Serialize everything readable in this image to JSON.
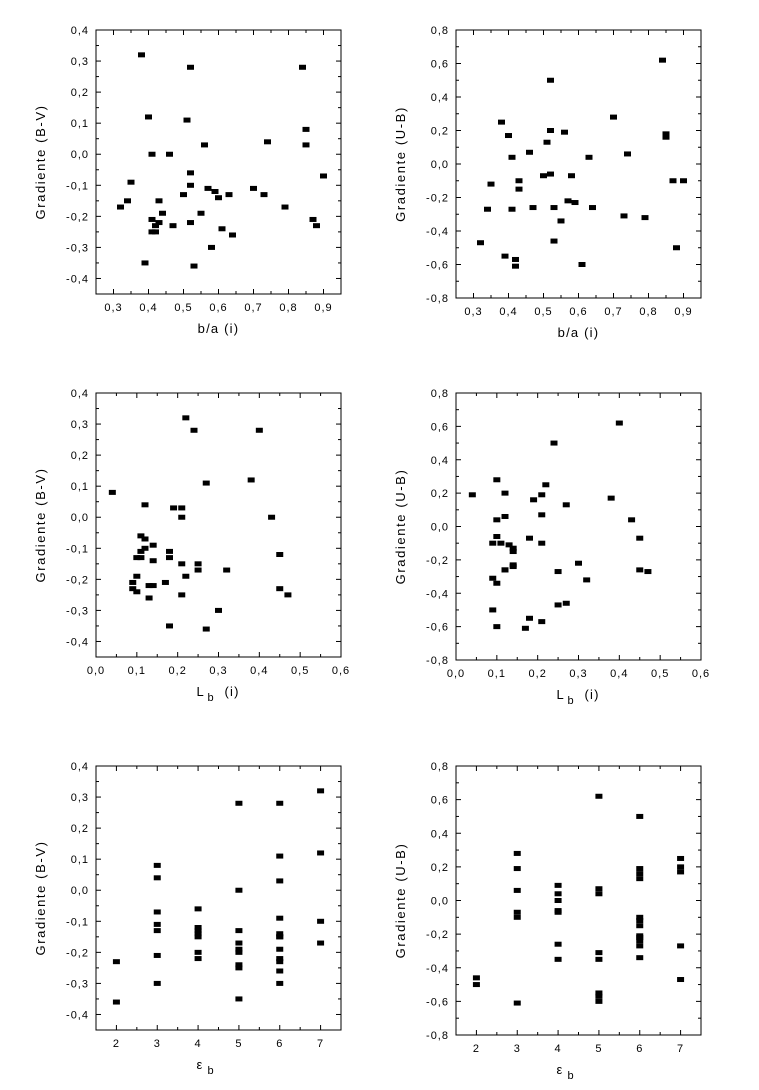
{
  "chart_data": [
    {
      "type": "scatter",
      "xlabel": "b/a  (i)",
      "ylabel": "Gradiente  (B-V)",
      "xlim": [
        0.25,
        0.95
      ],
      "ylim": [
        -0.45,
        0.4
      ],
      "xticks": [
        0.3,
        0.4,
        0.5,
        0.6,
        0.7,
        0.8,
        0.9
      ],
      "xtick_labels": [
        "0,3",
        "0,4",
        "0,5",
        "0,6",
        "0,7",
        "0,8",
        "0,9"
      ],
      "yticks": [
        -0.4,
        -0.3,
        -0.2,
        -0.1,
        0.0,
        0.1,
        0.2,
        0.3,
        0.4
      ],
      "ytick_labels": [
        "-0,4",
        "-0,3",
        "-0,2",
        "-0,1",
        "0,0",
        "0,1",
        "0,2",
        "0,3",
        "0,4"
      ],
      "x": [
        0.32,
        0.34,
        0.35,
        0.38,
        0.39,
        0.4,
        0.41,
        0.41,
        0.41,
        0.42,
        0.42,
        0.43,
        0.43,
        0.44,
        0.46,
        0.47,
        0.5,
        0.51,
        0.52,
        0.52,
        0.52,
        0.52,
        0.53,
        0.55,
        0.56,
        0.57,
        0.58,
        0.59,
        0.6,
        0.61,
        0.63,
        0.64,
        0.7,
        0.73,
        0.74,
        0.79,
        0.84,
        0.85,
        0.85,
        0.87,
        0.88,
        0.9
      ],
      "y": [
        -0.17,
        -0.15,
        -0.09,
        0.32,
        -0.35,
        0.12,
        0.0,
        -0.21,
        -0.25,
        -0.25,
        -0.23,
        -0.15,
        -0.22,
        -0.19,
        0.0,
        -0.23,
        -0.13,
        0.11,
        0.28,
        -0.06,
        -0.1,
        -0.22,
        -0.36,
        -0.19,
        0.03,
        -0.11,
        -0.3,
        -0.12,
        -0.14,
        -0.24,
        -0.13,
        -0.26,
        -0.11,
        -0.13,
        0.04,
        -0.17,
        0.28,
        0.08,
        0.03,
        -0.21,
        -0.23,
        -0.07
      ]
    },
    {
      "type": "scatter",
      "xlabel": "b/a  (i)",
      "ylabel": "Gradiente  (U-B)",
      "xlim": [
        0.25,
        0.95
      ],
      "ylim": [
        -0.8,
        0.8
      ],
      "xticks": [
        0.3,
        0.4,
        0.5,
        0.6,
        0.7,
        0.8,
        0.9
      ],
      "xtick_labels": [
        "0,3",
        "0,4",
        "0,5",
        "0,6",
        "0,7",
        "0,8",
        "0,9"
      ],
      "yticks": [
        -0.8,
        -0.6,
        -0.4,
        -0.2,
        0.0,
        0.2,
        0.4,
        0.6,
        0.8
      ],
      "ytick_labels": [
        "-0,8",
        "-0,6",
        "-0,4",
        "-0,2",
        "0,0",
        "0,2",
        "0,4",
        "0,6",
        "0,8"
      ],
      "x": [
        0.32,
        0.34,
        0.35,
        0.38,
        0.39,
        0.4,
        0.41,
        0.41,
        0.42,
        0.42,
        0.43,
        0.43,
        0.46,
        0.47,
        0.5,
        0.51,
        0.52,
        0.52,
        0.52,
        0.53,
        0.53,
        0.55,
        0.56,
        0.57,
        0.58,
        0.59,
        0.61,
        0.63,
        0.64,
        0.7,
        0.73,
        0.74,
        0.79,
        0.84,
        0.85,
        0.85,
        0.87,
        0.88,
        0.9
      ],
      "y": [
        -0.47,
        -0.27,
        -0.12,
        0.25,
        -0.55,
        0.17,
        0.04,
        -0.27,
        -0.61,
        -0.57,
        -0.1,
        -0.15,
        0.07,
        -0.26,
        -0.07,
        0.13,
        0.5,
        0.2,
        -0.06,
        -0.26,
        -0.46,
        -0.34,
        0.19,
        -0.22,
        -0.07,
        -0.23,
        -0.6,
        0.04,
        -0.26,
        0.28,
        -0.31,
        0.06,
        -0.32,
        0.62,
        0.18,
        0.16,
        -0.1,
        -0.5,
        -0.1
      ]
    },
    {
      "type": "scatter",
      "xlabel": "L",
      "xlabel_sub": "b",
      "xlabel_suffix": "(i)",
      "ylabel": "Gradiente  (B-V)",
      "xlim": [
        0.0,
        0.6
      ],
      "ylim": [
        -0.45,
        0.4
      ],
      "xticks": [
        0.0,
        0.1,
        0.2,
        0.3,
        0.4,
        0.5,
        0.6
      ],
      "xtick_labels": [
        "0,0",
        "0,1",
        "0,2",
        "0,3",
        "0,4",
        "0,5",
        "0,6"
      ],
      "yticks": [
        -0.4,
        -0.3,
        -0.2,
        -0.1,
        0.0,
        0.1,
        0.2,
        0.3,
        0.4
      ],
      "ytick_labels": [
        "-0,4",
        "-0,3",
        "-0,2",
        "-0,1",
        "0,0",
        "0,1",
        "0,2",
        "0,3",
        "0,4"
      ],
      "x": [
        0.04,
        0.09,
        0.09,
        0.1,
        0.1,
        0.1,
        0.11,
        0.11,
        0.11,
        0.12,
        0.12,
        0.12,
        0.13,
        0.13,
        0.14,
        0.14,
        0.14,
        0.17,
        0.18,
        0.18,
        0.18,
        0.19,
        0.21,
        0.21,
        0.21,
        0.21,
        0.22,
        0.22,
        0.24,
        0.25,
        0.25,
        0.27,
        0.27,
        0.3,
        0.32,
        0.38,
        0.4,
        0.43,
        0.45,
        0.45,
        0.47
      ],
      "y": [
        0.08,
        -0.21,
        -0.23,
        -0.13,
        -0.19,
        -0.24,
        -0.06,
        -0.11,
        -0.13,
        0.04,
        -0.07,
        -0.1,
        -0.22,
        -0.26,
        -0.09,
        -0.14,
        -0.22,
        -0.21,
        -0.11,
        -0.13,
        -0.35,
        0.03,
        0.03,
        0.0,
        -0.15,
        -0.25,
        0.32,
        -0.19,
        0.28,
        -0.15,
        -0.17,
        0.11,
        -0.36,
        -0.3,
        -0.17,
        0.12,
        0.28,
        0.0,
        -0.12,
        -0.23,
        -0.25
      ]
    },
    {
      "type": "scatter",
      "xlabel": "L",
      "xlabel_sub": "b",
      "xlabel_suffix": "(i)",
      "ylabel": "Gradiente  (U-B)",
      "xlim": [
        0.0,
        0.6
      ],
      "ylim": [
        -0.8,
        0.8
      ],
      "xticks": [
        0.0,
        0.1,
        0.2,
        0.3,
        0.4,
        0.5,
        0.6
      ],
      "xtick_labels": [
        "0,0",
        "0,1",
        "0,2",
        "0,3",
        "0,4",
        "0,5",
        "0,6"
      ],
      "yticks": [
        -0.8,
        -0.6,
        -0.4,
        -0.2,
        0.0,
        0.2,
        0.4,
        0.6,
        0.8
      ],
      "ytick_labels": [
        "-0,8",
        "-0,6",
        "-0,4",
        "-0,2",
        "0,0",
        "0,2",
        "0,4",
        "0,6",
        "0,8"
      ],
      "x": [
        0.04,
        0.09,
        0.09,
        0.09,
        0.1,
        0.1,
        0.1,
        0.1,
        0.1,
        0.11,
        0.12,
        0.12,
        0.12,
        0.12,
        0.13,
        0.14,
        0.14,
        0.14,
        0.14,
        0.17,
        0.18,
        0.18,
        0.19,
        0.21,
        0.21,
        0.21,
        0.21,
        0.22,
        0.24,
        0.25,
        0.25,
        0.27,
        0.27,
        0.3,
        0.32,
        0.38,
        0.4,
        0.43,
        0.45,
        0.45,
        0.47
      ],
      "y": [
        0.19,
        -0.1,
        -0.31,
        -0.5,
        0.28,
        0.04,
        -0.06,
        -0.34,
        -0.6,
        -0.1,
        0.2,
        0.06,
        -0.26,
        -0.26,
        -0.11,
        -0.13,
        -0.15,
        -0.23,
        -0.24,
        -0.61,
        -0.07,
        -0.55,
        0.16,
        0.19,
        0.07,
        -0.1,
        -0.57,
        0.25,
        0.5,
        -0.27,
        -0.47,
        0.13,
        -0.46,
        -0.22,
        -0.32,
        0.17,
        0.62,
        0.04,
        -0.07,
        -0.26,
        -0.27
      ]
    },
    {
      "type": "scatter",
      "xlabel": "ε",
      "xlabel_sub": "b",
      "xlabel_suffix": "",
      "ylabel": "Gradiente  (B-V)",
      "xlim": [
        1.5,
        7.5
      ],
      "ylim": [
        -0.45,
        0.4
      ],
      "xticks": [
        2,
        3,
        4,
        5,
        6,
        7
      ],
      "xtick_labels": [
        "2",
        "3",
        "4",
        "5",
        "6",
        "7"
      ],
      "yticks": [
        -0.4,
        -0.3,
        -0.2,
        -0.1,
        0.0,
        0.1,
        0.2,
        0.3,
        0.4
      ],
      "ytick_labels": [
        "-0,4",
        "-0,3",
        "-0,2",
        "-0,1",
        "0,0",
        "0,1",
        "0,2",
        "0,3",
        "0,4"
      ],
      "x": [
        2,
        2,
        3,
        3,
        3,
        3,
        3,
        3,
        3,
        4,
        4,
        4,
        4,
        4,
        4,
        4,
        5,
        5,
        5,
        5,
        5,
        5,
        5,
        5,
        5,
        6,
        6,
        6,
        6,
        6,
        6,
        6,
        6,
        6,
        6,
        6,
        6,
        7,
        7,
        7,
        7
      ],
      "y": [
        -0.23,
        -0.36,
        0.08,
        0.04,
        -0.07,
        -0.11,
        -0.13,
        -0.21,
        -0.3,
        -0.06,
        -0.12,
        -0.13,
        -0.14,
        -0.15,
        -0.2,
        -0.22,
        0.28,
        0.0,
        -0.13,
        -0.17,
        -0.19,
        -0.2,
        -0.24,
        -0.25,
        -0.35,
        0.28,
        0.11,
        0.03,
        -0.09,
        -0.14,
        -0.15,
        -0.19,
        -0.22,
        -0.23,
        -0.26,
        -0.3,
        -0.15,
        0.32,
        0.12,
        -0.1,
        -0.17
      ]
    },
    {
      "type": "scatter",
      "xlabel": "ε",
      "xlabel_sub": "b",
      "xlabel_suffix": "",
      "ylabel": "Gradiente  (U-B)",
      "xlim": [
        1.5,
        7.5
      ],
      "ylim": [
        -0.8,
        0.8
      ],
      "xticks": [
        2,
        3,
        4,
        5,
        6,
        7
      ],
      "xtick_labels": [
        "2",
        "3",
        "4",
        "5",
        "6",
        "7"
      ],
      "yticks": [
        -0.8,
        -0.6,
        -0.4,
        -0.2,
        0.0,
        0.2,
        0.4,
        0.6,
        0.8
      ],
      "ytick_labels": [
        "-0,8",
        "-0,6",
        "-0,4",
        "-0,2",
        "0,0",
        "0,2",
        "0,4",
        "0,6",
        "0,8"
      ],
      "x": [
        2,
        2,
        3,
        3,
        3,
        3,
        3,
        3,
        4,
        4,
        4,
        4,
        4,
        4,
        4,
        5,
        5,
        5,
        5,
        5,
        5,
        5,
        5,
        6,
        6,
        6,
        6,
        6,
        6,
        6,
        6,
        6,
        6,
        6,
        6,
        7,
        7,
        7,
        7,
        7
      ],
      "y": [
        -0.46,
        -0.5,
        0.28,
        0.19,
        0.06,
        -0.07,
        -0.1,
        -0.61,
        0.09,
        0.04,
        -0.06,
        -0.07,
        -0.26,
        -0.35,
        0.0,
        0.62,
        0.07,
        0.04,
        -0.31,
        -0.35,
        -0.55,
        -0.6,
        -0.57,
        0.5,
        0.19,
        0.16,
        0.13,
        -0.1,
        -0.12,
        -0.15,
        -0.21,
        -0.24,
        -0.27,
        -0.34,
        -0.22,
        0.25,
        0.2,
        0.17,
        -0.27,
        -0.47
      ]
    }
  ]
}
